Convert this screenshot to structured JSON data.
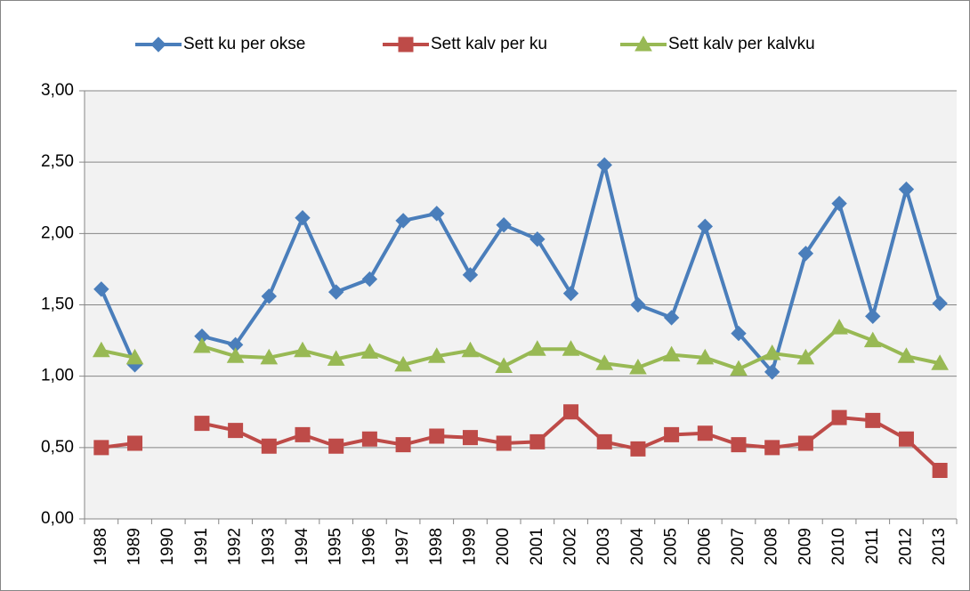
{
  "chart_data": {
    "type": "line",
    "categories": [
      "1988",
      "1989",
      "1990",
      "1991",
      "1992",
      "1993",
      "1994",
      "1995",
      "1996",
      "1997",
      "1998",
      "1999",
      "2000",
      "2001",
      "2002",
      "2003",
      "2004",
      "2005",
      "2006",
      "2007",
      "2008",
      "2009",
      "2010",
      "2011",
      "2012",
      "2013"
    ],
    "series": [
      {
        "name": "Sett ku per okse",
        "color": "#4a7ebb",
        "marker": "diamond",
        "values": [
          1.61,
          1.08,
          null,
          1.28,
          1.22,
          1.56,
          2.11,
          1.59,
          1.68,
          2.09,
          2.14,
          1.71,
          2.06,
          1.96,
          1.58,
          2.48,
          1.5,
          1.41,
          2.05,
          1.3,
          1.03,
          1.86,
          2.21,
          1.42,
          2.31,
          1.51
        ]
      },
      {
        "name": "Sett kalv per ku",
        "color": "#be4b48",
        "marker": "square",
        "values": [
          0.5,
          0.53,
          null,
          0.67,
          0.62,
          0.51,
          0.59,
          0.51,
          0.56,
          0.52,
          0.58,
          0.57,
          0.53,
          0.54,
          0.75,
          0.54,
          0.49,
          0.59,
          0.6,
          0.52,
          0.5,
          0.53,
          0.71,
          0.69,
          0.56,
          0.34
        ]
      },
      {
        "name": "Sett kalv per kalvku",
        "color": "#98b954",
        "marker": "triangle",
        "values": [
          1.18,
          1.13,
          null,
          1.21,
          1.14,
          1.13,
          1.18,
          1.12,
          1.17,
          1.08,
          1.14,
          1.18,
          1.07,
          1.19,
          1.19,
          1.09,
          1.06,
          1.15,
          1.13,
          1.05,
          1.16,
          1.13,
          1.34,
          1.25,
          1.14,
          1.09
        ]
      }
    ],
    "ylim": [
      0,
      3
    ],
    "yticks": [
      {
        "value": 0,
        "label": "0,00"
      },
      {
        "value": 0.5,
        "label": "0,50"
      },
      {
        "value": 1,
        "label": "1,00"
      },
      {
        "value": 1.5,
        "label": "1,50"
      },
      {
        "value": 2,
        "label": "2,00"
      },
      {
        "value": 2.5,
        "label": "2,50"
      },
      {
        "value": 3,
        "label": "3,00"
      }
    ],
    "grid": true,
    "legend": "top"
  }
}
